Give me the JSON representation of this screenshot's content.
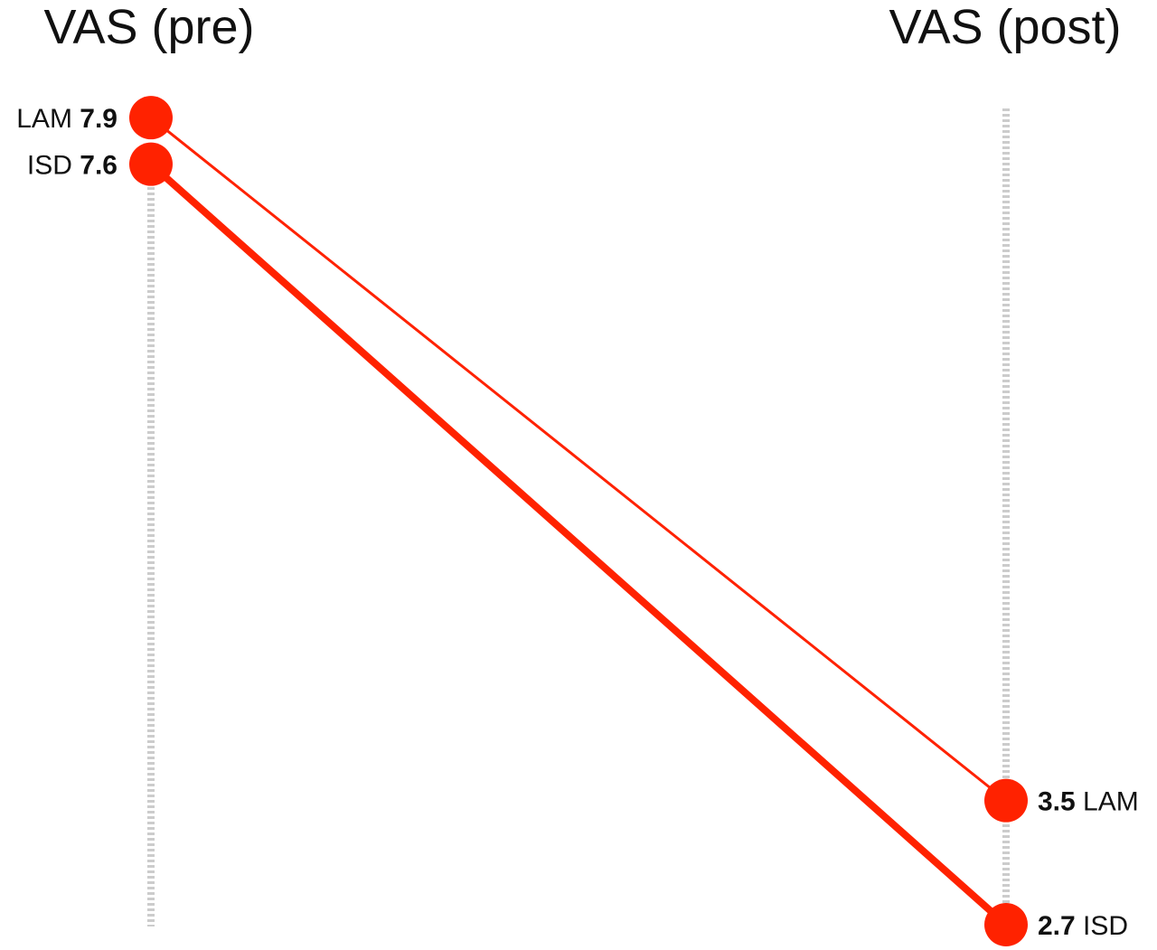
{
  "chart_data": {
    "type": "line",
    "x": [
      "VAS (pre)",
      "VAS (post)"
    ],
    "series": [
      {
        "name": "LAM",
        "values": [
          7.9,
          3.5
        ],
        "color": "#ff2200",
        "stroke": "thin"
      },
      {
        "name": "ISD",
        "values": [
          7.6,
          2.7
        ],
        "color": "#ff2200",
        "stroke": "thick"
      }
    ],
    "point_color": "#ff2200",
    "guide_color": "#cccccc"
  }
}
